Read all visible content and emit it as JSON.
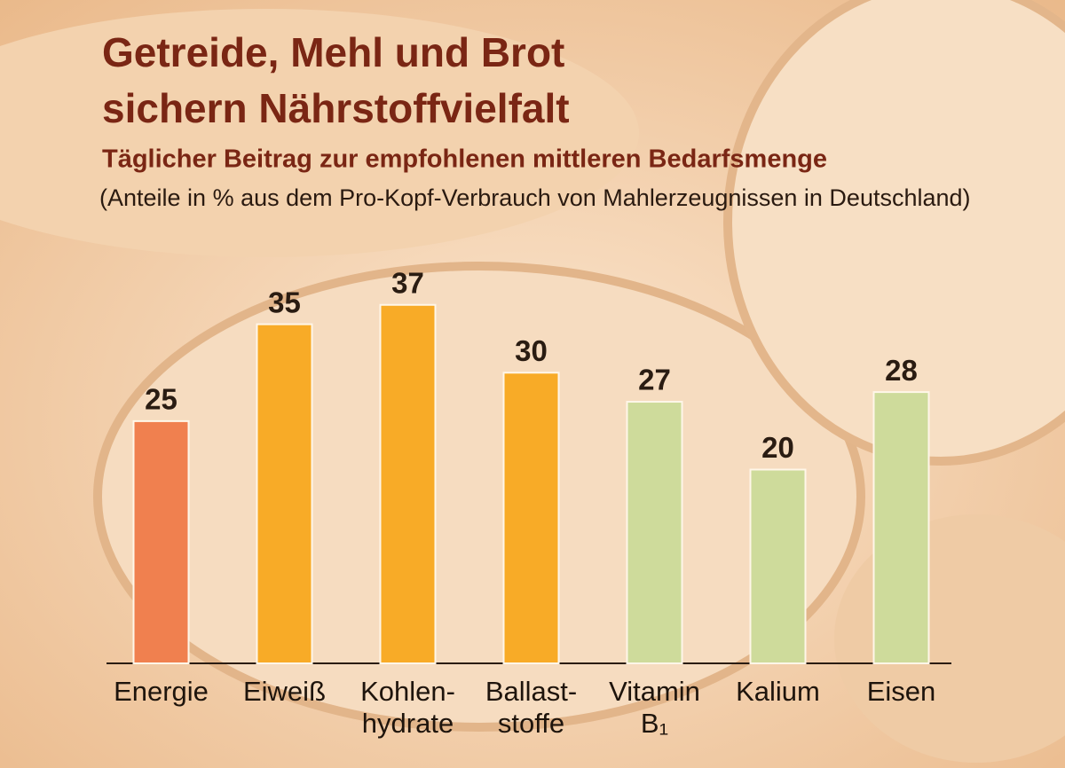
{
  "chart_data": {
    "type": "bar",
    "title": [
      "Getreide, Mehl und Brot",
      "sichern Nährstoffvielfalt"
    ],
    "subtitle": "Täglicher Beitrag zur empfohlenen mittleren Bedarfsmenge",
    "note": "(Anteile in % aus dem Pro-Kopf-Verbrauch von Mahlerzeugnissen in Deutschland)",
    "categories": [
      [
        "Energie"
      ],
      [
        "Eiweiß"
      ],
      [
        "Kohlen-",
        "hydrate"
      ],
      [
        "Ballast-",
        "stoffe"
      ],
      [
        "Vitamin",
        "B₁"
      ],
      [
        "Kalium"
      ],
      [
        "Eisen"
      ]
    ],
    "values": [
      25,
      35,
      37,
      30,
      27,
      20,
      28
    ],
    "colors": [
      "#f0804f",
      "#f8ab27",
      "#f8ab27",
      "#f8ab27",
      "#cedb9b",
      "#cedb9b",
      "#cedb9b"
    ],
    "ylim": [
      0,
      40
    ]
  }
}
